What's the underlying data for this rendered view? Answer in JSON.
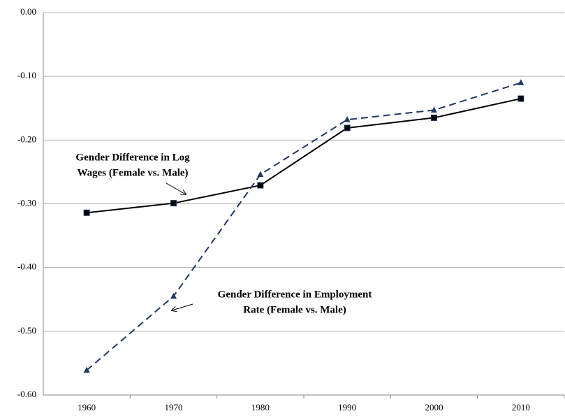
{
  "chart_data": {
    "type": "line",
    "categories": [
      "1960",
      "1970",
      "1980",
      "1990",
      "2000",
      "2010"
    ],
    "series": [
      {
        "color": "#000000",
        "dash": false,
        "marker": "square",
        "values": [
          -0.314,
          -0.299,
          -0.271,
          -0.181,
          -0.165,
          -0.135
        ]
      },
      {
        "color": "#1f3864",
        "dash": true,
        "marker": "triangle",
        "values": [
          -0.561,
          -0.445,
          -0.254,
          -0.168,
          -0.153,
          -0.11
        ]
      }
    ],
    "ylim": [
      -0.6,
      0
    ],
    "yticks": [
      {
        "value": 0,
        "label": "0.00"
      },
      {
        "value": -0.1,
        "label": "-0.10"
      },
      {
        "value": -0.2,
        "label": "-0.20"
      },
      {
        "value": -0.3,
        "label": "-0.30"
      },
      {
        "value": -0.4,
        "label": "-0.40"
      },
      {
        "value": -0.5,
        "label": "-0.50"
      },
      {
        "value": -0.6,
        "label": "-0.60"
      }
    ],
    "grid": true,
    "annotations": [
      {
        "lines": [
          "Gender Difference in Log",
          "Wages (Female vs. Male)"
        ]
      },
      {
        "lines": [
          "Gender Difference in Employment",
          "Rate (Female vs. Male)"
        ]
      }
    ]
  }
}
